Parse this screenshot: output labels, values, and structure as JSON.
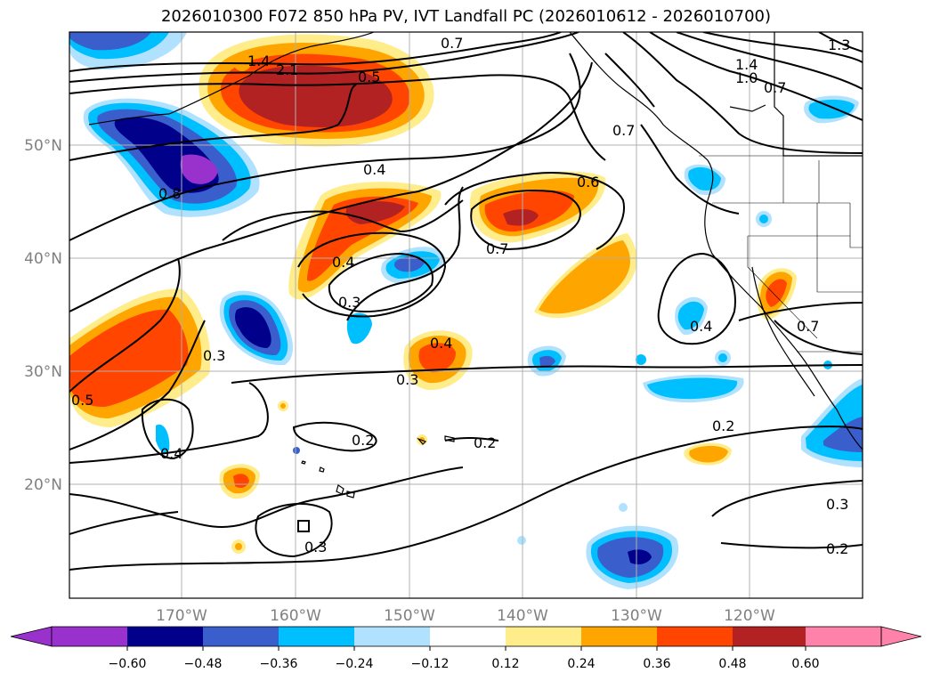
{
  "title": "2026010300 F072 850 hPa PV, IVT Landfall PC (2026010612 - 2026010700)",
  "axes": {
    "lon_labels": [
      "170°W",
      "160°W",
      "150°W",
      "140°W",
      "130°W",
      "120°W"
    ],
    "lat_labels": [
      "50°N",
      "40°N",
      "30°N",
      "20°N"
    ]
  },
  "contour_labels": [
    "0.7",
    "1.4",
    "2.1",
    "0.5",
    "0.4",
    "0.8",
    "0.6",
    "0.7",
    "0.4",
    "0.3",
    "0.4",
    "0.3",
    "0.5",
    "0.3",
    "0.4",
    "0.2",
    "0.2",
    "0.2",
    "0.4",
    "0.7",
    "1.4",
    "1.0",
    "0.7",
    "1.3",
    "0.3",
    "0.2",
    "0.3",
    "0.7"
  ],
  "colorbar": {
    "tick_labels": [
      "−0.60",
      "−0.48",
      "−0.36",
      "−0.24",
      "−0.12",
      "0.12",
      "0.24",
      "0.36",
      "0.48",
      "0.60"
    ],
    "colors": [
      "#9932cc",
      "#00008b",
      "#3a5fcd",
      "#00bfff",
      "#b0e2ff",
      "#ffffff",
      "#ffec8b",
      "#ffa500",
      "#ff4500",
      "#b22222",
      "#ff82ab"
    ]
  },
  "chart_data": {
    "type": "filled-contour-map",
    "variable": "850 hPa PV, IVT Landfall PC",
    "lon_range": [
      -180,
      -110
    ],
    "lat_range": [
      10,
      60
    ],
    "levels": [
      -0.6,
      -0.48,
      -0.36,
      -0.24,
      -0.12,
      0.12,
      0.24,
      0.36,
      0.48,
      0.6
    ]
  }
}
